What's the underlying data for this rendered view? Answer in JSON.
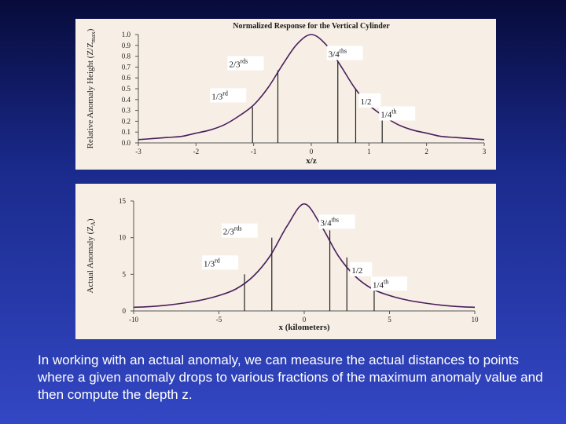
{
  "caption": "In working with an actual anomaly, we can measure the actual distances to points where a given anomaly drops to various fractions of the maximum anomaly value and then compute the depth z.",
  "chart_data": [
    {
      "type": "line",
      "title": "Normalized Response for the Vertical Cylinder",
      "xlabel": "x/z",
      "ylabel": "Relative Anomaly Height (Z/Z",
      "ylabel_sub": "max",
      "ylabel_close": ")",
      "xlim": [
        -3,
        3
      ],
      "ylim": [
        0,
        1
      ],
      "xticks": [
        -3,
        -2,
        -1,
        0,
        1,
        2,
        3
      ],
      "yticks": [
        0.0,
        0.1,
        0.2,
        0.3,
        0.4,
        0.5,
        0.6,
        0.7,
        0.8,
        0.9,
        1.0
      ],
      "ytick_labels": [
        "0.0",
        "0.1",
        "0.2",
        "0.3",
        "0.4",
        "0.5",
        "0.6",
        "0.7",
        "0.8",
        "0.9",
        "1.0"
      ],
      "curve": {
        "x": [
          -3,
          -2.75,
          -2.5,
          -2.25,
          -2,
          -1.75,
          -1.5,
          -1.25,
          -1,
          -0.75,
          -0.5,
          -0.25,
          0,
          0.25,
          0.5,
          0.75,
          1,
          1.25,
          1.5,
          1.75,
          2,
          2.25,
          2.5,
          2.75,
          3
        ],
        "y": [
          0.03,
          0.04,
          0.05,
          0.06,
          0.09,
          0.12,
          0.17,
          0.25,
          0.35,
          0.51,
          0.72,
          0.91,
          1.0,
          0.91,
          0.72,
          0.51,
          0.35,
          0.25,
          0.17,
          0.12,
          0.09,
          0.06,
          0.05,
          0.04,
          0.03
        ]
      },
      "markers": [
        {
          "x": -1.02,
          "y": 0.33,
          "label": "1/3",
          "sup": "rd"
        },
        {
          "x": -0.58,
          "y": 0.67,
          "label": "2/3",
          "sup": "rds"
        },
        {
          "x": 0.46,
          "y": 0.75,
          "label": "3/4",
          "sup": "ths"
        },
        {
          "x": 0.77,
          "y": 0.5,
          "label": "1/2",
          "sup": ""
        },
        {
          "x": 1.23,
          "y": 0.25,
          "label": "1/4",
          "sup": "th"
        }
      ]
    },
    {
      "type": "line",
      "title": "",
      "xlabel": "x (kilometers)",
      "ylabel": "Actual Anomaly (Z",
      "ylabel_sub": "A",
      "ylabel_close": ")",
      "xlim": [
        -10,
        10
      ],
      "ylim": [
        0,
        15
      ],
      "xticks": [
        -10,
        -5,
        0,
        5,
        10
      ],
      "yticks": [
        0,
        5,
        10,
        15
      ],
      "ytick_labels": [
        "0",
        "5",
        "10",
        "15"
      ],
      "curve": {
        "x": [
          -10,
          -9,
          -8,
          -7,
          -6,
          -5,
          -4,
          -3,
          -2,
          -1,
          0,
          1,
          2,
          3,
          4,
          5,
          6,
          7,
          8,
          9,
          10
        ],
        "y": [
          0.5,
          0.6,
          0.8,
          1.1,
          1.5,
          2.1,
          3.0,
          4.7,
          7.5,
          11.6,
          14.6,
          11.6,
          7.5,
          4.7,
          3.0,
          2.1,
          1.5,
          1.1,
          0.8,
          0.6,
          0.5
        ]
      },
      "markers": [
        {
          "x": -3.5,
          "y": 5.0,
          "label": "1/3",
          "sup": "rd"
        },
        {
          "x": -1.9,
          "y": 10.0,
          "label": "2/3",
          "sup": "rds"
        },
        {
          "x": 1.5,
          "y": 11.0,
          "label": "3/4",
          "sup": "ths"
        },
        {
          "x": 2.5,
          "y": 7.3,
          "label": "1/2",
          "sup": ""
        },
        {
          "x": 4.1,
          "y": 3.4,
          "label": "1/4",
          "sup": "th"
        }
      ]
    }
  ]
}
